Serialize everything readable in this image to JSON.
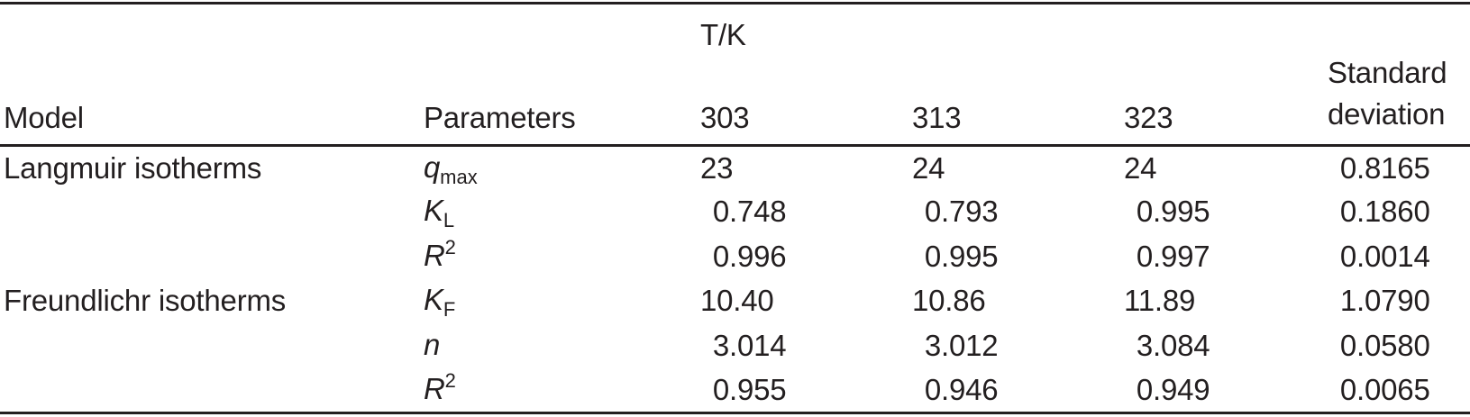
{
  "page": {
    "background": "#ffffff",
    "text_color": "#231f20",
    "rule_color": "#231f20"
  },
  "table": {
    "header": {
      "model": "Model",
      "parameters": "Parameters",
      "temp_group_label": "T/K",
      "temp_columns": [
        "303",
        "313",
        "323"
      ],
      "std_label": "Standard deviation"
    },
    "rows": [
      {
        "model": "Langmuir isotherms",
        "param": {
          "base": "q",
          "sub": "max",
          "sup": ""
        },
        "values": [
          "23",
          "24",
          "24"
        ],
        "std": "0.8165"
      },
      {
        "model": "",
        "param": {
          "base": "K",
          "sub": "L",
          "sup": ""
        },
        "values": [
          "0.748",
          "0.793",
          "0.995"
        ],
        "std": "0.1860"
      },
      {
        "model": "",
        "param": {
          "base": "R",
          "sub": "",
          "sup": "2"
        },
        "values": [
          "0.996",
          "0.995",
          "0.997"
        ],
        "std": "0.0014"
      },
      {
        "model": "Freundlichr isotherms",
        "param": {
          "base": "K",
          "sub": "F",
          "sup": ""
        },
        "values": [
          "10.40",
          "10.86",
          "11.89"
        ],
        "std": "1.0790"
      },
      {
        "model": "",
        "param": {
          "base": "n",
          "sub": "",
          "sup": ""
        },
        "values": [
          "3.014",
          "3.012",
          "3.084"
        ],
        "std": "0.0580"
      },
      {
        "model": "",
        "param": {
          "base": "R",
          "sub": "",
          "sup": "2"
        },
        "values": [
          "0.955",
          "0.946",
          "0.949"
        ],
        "std": "0.0065"
      }
    ]
  }
}
